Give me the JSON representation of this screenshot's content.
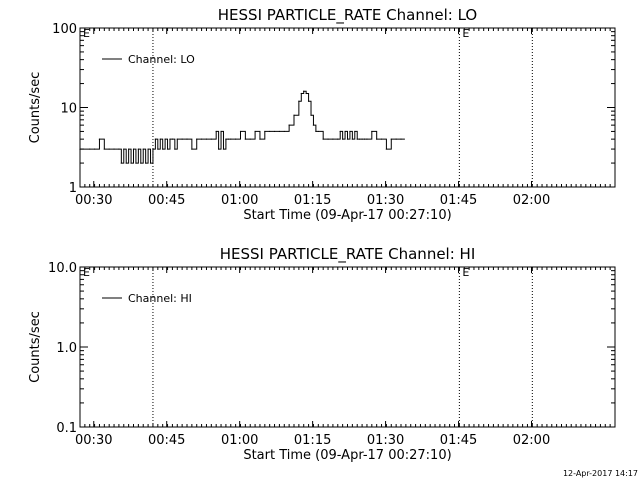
{
  "chart_data": [
    {
      "type": "line",
      "title": "HESSI PARTICLE_RATE Channel: LO",
      "xlabel": "Start Time (09-Apr-17 00:27:10)",
      "ylabel": "Counts/sec",
      "yscale": "log",
      "ylim": [
        1,
        100
      ],
      "xlim": [
        0,
        110
      ],
      "x_unit": "minutes after 00:27:10",
      "xticks": [
        {
          "x": 2.83,
          "label": "00:30"
        },
        {
          "x": 17.83,
          "label": "00:45"
        },
        {
          "x": 32.83,
          "label": "01:00"
        },
        {
          "x": 47.83,
          "label": "01:15"
        },
        {
          "x": 62.83,
          "label": "01:30"
        },
        {
          "x": 77.83,
          "label": "01:45"
        },
        {
          "x": 92.83,
          "label": "02:00"
        }
      ],
      "yticks": [
        {
          "y": 1,
          "label": "1"
        },
        {
          "y": 10,
          "label": "10"
        },
        {
          "y": 100,
          "label": "100"
        }
      ],
      "vlines": [
        0,
        15,
        78,
        93
      ],
      "markers": [
        {
          "x": 0,
          "label": "E"
        },
        {
          "x": 78,
          "label": "E"
        }
      ],
      "legend": {
        "position": "top-left",
        "entries": [
          "Channel: LO"
        ]
      },
      "series": [
        {
          "name": "Channel: LO",
          "x": [
            0,
            2,
            3,
            4,
            5,
            6,
            7,
            8,
            8.5,
            9,
            9.5,
            10,
            10.5,
            11,
            11.5,
            12,
            12.5,
            13,
            13.5,
            14,
            14.5,
            15,
            15.5,
            16,
            16.5,
            17,
            17.5,
            18,
            18.5,
            19,
            19.5,
            20,
            21,
            22,
            23,
            24,
            25,
            26,
            27,
            28,
            28.5,
            29,
            29.5,
            30,
            30.5,
            31,
            32,
            33,
            34,
            35,
            36,
            37,
            38,
            39,
            40,
            41,
            42,
            43,
            44,
            45,
            45.5,
            46,
            46.5,
            47,
            47.5,
            48,
            48.5,
            49,
            50,
            51,
            52,
            53,
            53.5,
            54,
            54.5,
            55,
            55.5,
            56,
            56.5,
            57,
            57.5,
            58,
            58.5,
            59,
            60,
            61,
            62,
            63,
            64,
            65,
            66
          ],
          "y": [
            3,
            3,
            3,
            4,
            3,
            3,
            3,
            3,
            2,
            3,
            2,
            3,
            2,
            3,
            2,
            3,
            2,
            3,
            2,
            3,
            2,
            3,
            4,
            3,
            4,
            3,
            4,
            3,
            4,
            4,
            3,
            4,
            4,
            4,
            3,
            4,
            4,
            4,
            4,
            5,
            3,
            5,
            3,
            4,
            4,
            4,
            4,
            5,
            4,
            4,
            5,
            4,
            5,
            5,
            5,
            5,
            5,
            6,
            8,
            12,
            15,
            16,
            15,
            12,
            8,
            6,
            5,
            5,
            4,
            4,
            4,
            4,
            5,
            4,
            5,
            4,
            5,
            4,
            5,
            4,
            4,
            4,
            4,
            4,
            5,
            4,
            4,
            3,
            4,
            4,
            4
          ]
        }
      ]
    },
    {
      "type": "line",
      "title": "HESSI PARTICLE_RATE Channel: HI",
      "xlabel": "Start Time (09-Apr-17 00:27:10)",
      "ylabel": "Counts/sec",
      "yscale": "log",
      "ylim": [
        0.1,
        10
      ],
      "xlim": [
        0,
        110
      ],
      "x_unit": "minutes after 00:27:10",
      "xticks": [
        {
          "x": 2.83,
          "label": "00:30"
        },
        {
          "x": 17.83,
          "label": "00:45"
        },
        {
          "x": 32.83,
          "label": "01:00"
        },
        {
          "x": 47.83,
          "label": "01:15"
        },
        {
          "x": 62.83,
          "label": "01:30"
        },
        {
          "x": 77.83,
          "label": "01:45"
        },
        {
          "x": 92.83,
          "label": "02:00"
        }
      ],
      "yticks": [
        {
          "y": 0.1,
          "label": "0.1"
        },
        {
          "y": 1,
          "label": "1.0"
        },
        {
          "y": 10,
          "label": "10.0"
        }
      ],
      "vlines": [
        0,
        15,
        78,
        93
      ],
      "markers": [
        {
          "x": 0,
          "label": "E"
        },
        {
          "x": 78,
          "label": "E"
        }
      ],
      "legend": {
        "position": "top-left",
        "entries": [
          "Channel: HI"
        ]
      },
      "series": [
        {
          "name": "Channel: HI",
          "x": [],
          "y": []
        }
      ]
    }
  ],
  "footer": {
    "timestamp": "12-Apr-2017 14:17"
  }
}
